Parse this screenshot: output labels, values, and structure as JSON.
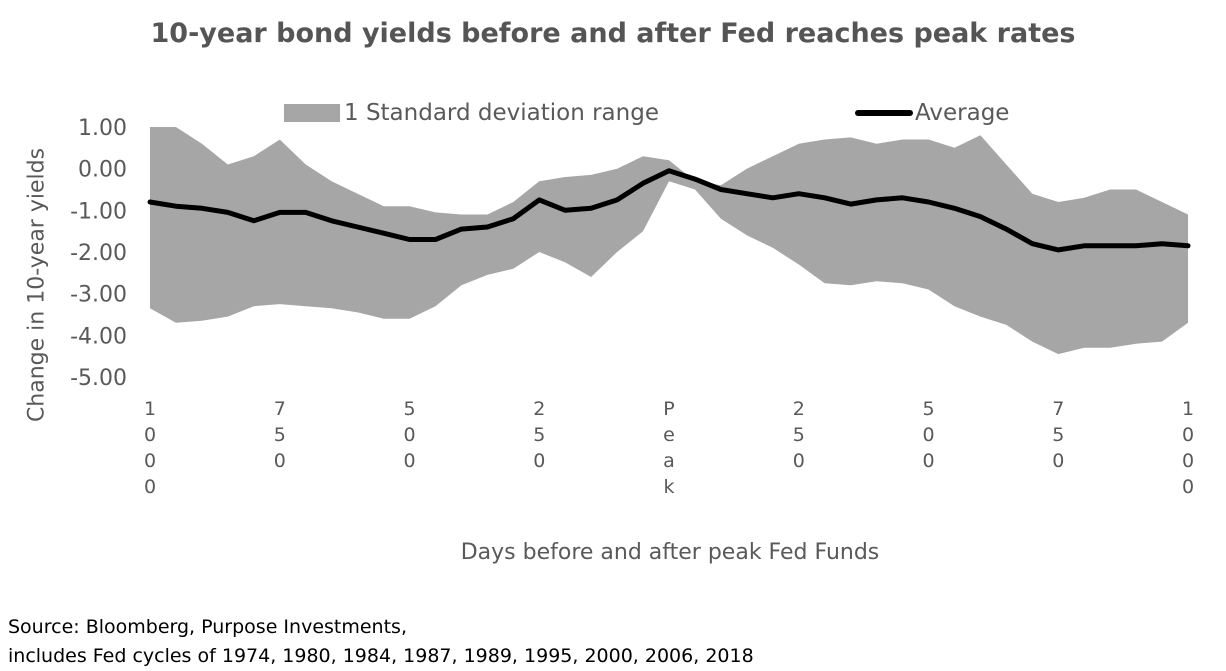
{
  "chart_data": {
    "type": "area",
    "title": "10-year bond yields before and after Fed reaches peak rates",
    "xlabel": "Days before and after peak Fed Funds",
    "ylabel": "Change in 10-year yields",
    "x_range": [
      -1000,
      1000
    ],
    "ylim": [
      -5.0,
      1.0
    ],
    "y_ticks": [
      "1.00",
      "0.00",
      "-1.00",
      "-2.00",
      "-3.00",
      "-4.00",
      "-5.00"
    ],
    "x_ticks": [
      {
        "x": -1000,
        "label": "1000"
      },
      {
        "x": -750,
        "label": "750"
      },
      {
        "x": -500,
        "label": "500"
      },
      {
        "x": -250,
        "label": "250"
      },
      {
        "x": 0,
        "label": "Peak"
      },
      {
        "x": 250,
        "label": "250"
      },
      {
        "x": 500,
        "label": "500"
      },
      {
        "x": 750,
        "label": "750"
      },
      {
        "x": 1000,
        "label": "1000"
      }
    ],
    "legend_position": "top",
    "grid": false,
    "series": [
      {
        "name": "1 Standard deviation range",
        "kind": "band",
        "color": "#a6a6a6",
        "x": [
          -1000,
          -950,
          -900,
          -850,
          -800,
          -750,
          -700,
          -650,
          -600,
          -550,
          -500,
          -450,
          -400,
          -350,
          -300,
          -250,
          -200,
          -150,
          -100,
          -50,
          0,
          50,
          100,
          150,
          200,
          250,
          300,
          350,
          400,
          450,
          500,
          550,
          600,
          650,
          700,
          750,
          800,
          850,
          900,
          950,
          1000
        ],
        "upper": [
          1.0,
          1.0,
          0.6,
          0.1,
          0.3,
          0.7,
          0.1,
          -0.3,
          -0.6,
          -0.9,
          -0.9,
          -1.05,
          -1.1,
          -1.1,
          -0.8,
          -0.3,
          -0.2,
          -0.15,
          0.0,
          0.3,
          0.2,
          -0.3,
          -0.4,
          0.0,
          0.3,
          0.6,
          0.7,
          0.75,
          0.6,
          0.7,
          0.7,
          0.5,
          0.8,
          0.1,
          -0.6,
          -0.8,
          -0.7,
          -0.5,
          -0.5,
          -0.8,
          -1.1
        ],
        "lower": [
          -3.35,
          -3.7,
          -3.65,
          -3.55,
          -3.3,
          -3.25,
          -3.3,
          -3.35,
          -3.45,
          -3.6,
          -3.6,
          -3.3,
          -2.8,
          -2.55,
          -2.4,
          -2.0,
          -2.25,
          -2.6,
          -2.0,
          -1.5,
          -0.3,
          -0.5,
          -1.2,
          -1.6,
          -1.9,
          -2.3,
          -2.75,
          -2.8,
          -2.7,
          -2.75,
          -2.9,
          -3.3,
          -3.55,
          -3.75,
          -4.15,
          -4.45,
          -4.3,
          -4.3,
          -4.2,
          -4.15,
          -3.7
        ]
      },
      {
        "name": "Average",
        "kind": "line",
        "color": "#000000",
        "x": [
          -1000,
          -950,
          -900,
          -850,
          -800,
          -750,
          -700,
          -650,
          -600,
          -550,
          -500,
          -450,
          -400,
          -350,
          -300,
          -250,
          -200,
          -150,
          -100,
          -50,
          0,
          50,
          100,
          150,
          200,
          250,
          300,
          350,
          400,
          450,
          500,
          550,
          600,
          650,
          700,
          750,
          800,
          850,
          900,
          950,
          1000
        ],
        "values": [
          -0.8,
          -0.9,
          -0.95,
          -1.05,
          -1.25,
          -1.05,
          -1.05,
          -1.25,
          -1.4,
          -1.55,
          -1.7,
          -1.7,
          -1.45,
          -1.4,
          -1.2,
          -0.75,
          -1.0,
          -0.95,
          -0.75,
          -0.35,
          -0.05,
          -0.25,
          -0.5,
          -0.6,
          -0.7,
          -0.6,
          -0.7,
          -0.85,
          -0.75,
          -0.7,
          -0.8,
          -0.95,
          -1.15,
          -1.45,
          -1.8,
          -1.95,
          -1.85,
          -1.85,
          -1.85,
          -1.8,
          -1.85
        ]
      }
    ]
  },
  "source_lines": [
    "Source: Bloomberg, Purpose Investments,",
    "includes Fed cycles of 1974, 1980, 1984, 1987, 1989, 1995, 2000, 2006, 2018"
  ],
  "colors": {
    "band": "#a6a6a6",
    "line": "#000000",
    "text": "#595959"
  }
}
